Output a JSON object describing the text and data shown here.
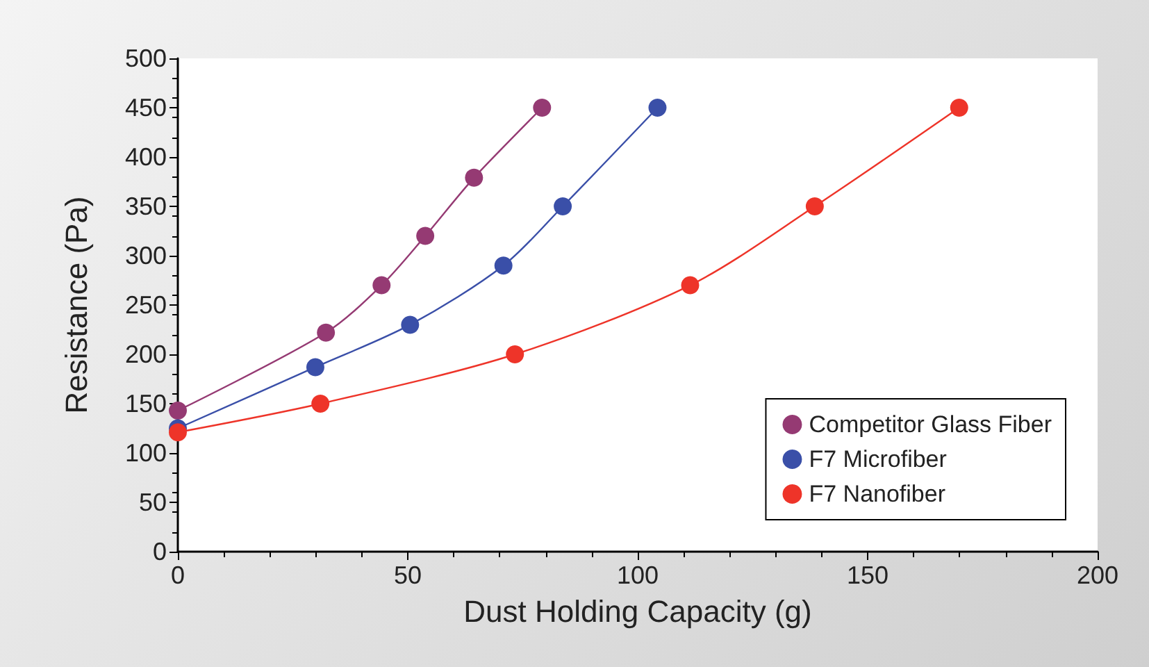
{
  "chart_data": {
    "type": "line",
    "xlabel": "Dust Holding Capacity (g)",
    "ylabel": "Resistance (Pa)",
    "xlim": [
      0,
      200
    ],
    "xticks": [
      0,
      50,
      100,
      150,
      200
    ],
    "ylim": [
      0,
      500
    ],
    "yticks": [
      0,
      50,
      100,
      150,
      200,
      250,
      300,
      350,
      400,
      450,
      500
    ],
    "grid": false,
    "legend": "bottom right",
    "marker": "circle",
    "line_style": "solid",
    "series": [
      {
        "name": "Competitor Glass Fiber",
        "color": "#953a73",
        "x": [
          0,
          32.2,
          44.3,
          53.8,
          64.4,
          79.2
        ],
        "values": [
          143,
          222,
          270,
          320,
          379,
          450
        ]
      },
      {
        "name": "F7 Microfiber",
        "color": "#3a4fa8",
        "x": [
          0,
          29.9,
          50.5,
          70.8,
          83.7,
          104.3
        ],
        "values": [
          125,
          187,
          230,
          290,
          350,
          450
        ]
      },
      {
        "name": "F7 Nanofiber",
        "color": "#ee3429",
        "x": [
          0,
          31,
          73.3,
          111.4,
          138.5,
          169.9
        ],
        "values": [
          121,
          150,
          200,
          270,
          350,
          450
        ]
      }
    ]
  }
}
